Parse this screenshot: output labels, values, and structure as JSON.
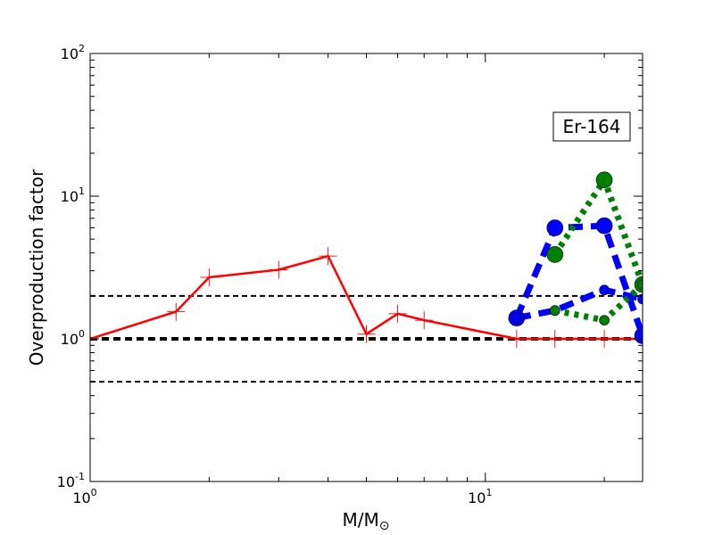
{
  "chart_data": {
    "type": "line",
    "title": "",
    "xlabel": "M/M",
    "xlabel_symbol": "⊙",
    "ylabel": "Overproduction factor",
    "xscale": "log",
    "yscale": "log",
    "xlim": [
      1,
      25
    ],
    "ylim": [
      0.1,
      100
    ],
    "grid": false,
    "x_ticks": [
      {
        "base": "10",
        "exp": "0",
        "value": 1
      },
      {
        "base": "10",
        "exp": "1",
        "value": 10
      }
    ],
    "y_ticks": [
      {
        "base": "10",
        "exp": "-1",
        "value": 0.1
      },
      {
        "base": "10",
        "exp": "0",
        "value": 1
      },
      {
        "base": "10",
        "exp": "1",
        "value": 10
      },
      {
        "base": "10",
        "exp": "2",
        "value": 100
      }
    ],
    "annotation": "Er-164",
    "reference_lines": [
      {
        "y": 2.0,
        "style": "dashed",
        "color": "#000000",
        "weight": "thin"
      },
      {
        "y": 1.0,
        "style": "dashed",
        "color": "#000000",
        "weight": "thick"
      },
      {
        "y": 0.5,
        "style": "dashed",
        "color": "#000000",
        "weight": "thin"
      }
    ],
    "series": [
      {
        "color": "#ff0000",
        "style": "solid",
        "marker": "plus",
        "x": [
          1,
          1.65,
          2,
          3,
          4,
          5,
          6,
          7,
          12,
          15,
          20,
          25
        ],
        "y": [
          1.0,
          1.55,
          2.7,
          3.05,
          3.8,
          1.08,
          1.5,
          1.35,
          1.0,
          1.0,
          1.0,
          1.0
        ]
      },
      {
        "color": "#0000ff",
        "style": "dashed",
        "marker": "circle",
        "x": [
          12,
          15,
          20,
          25
        ],
        "y": [
          1.4,
          6.0,
          6.2,
          1.05
        ]
      },
      {
        "color": "#008000",
        "style": "dotted",
        "marker": "circle",
        "x": [
          15,
          20,
          25
        ],
        "y": [
          3.9,
          13.0,
          2.4
        ]
      },
      {
        "color": "#0000ff",
        "style": "dashed",
        "marker": "circle",
        "x": [
          12,
          15,
          20,
          25
        ],
        "y": [
          1.4,
          1.58,
          2.2,
          1.9
        ]
      },
      {
        "color": "#008000",
        "style": "dotted",
        "marker": "circle",
        "x": [
          15,
          20,
          25
        ],
        "y": [
          1.58,
          1.35,
          2.4
        ]
      }
    ]
  }
}
